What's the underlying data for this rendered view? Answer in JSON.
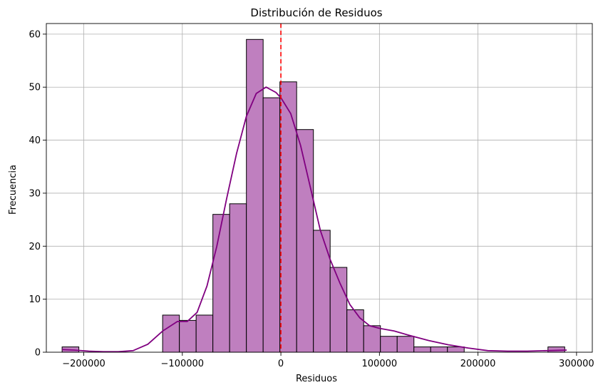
{
  "chart_data": {
    "type": "histogram",
    "title": "Distribución de Residuos",
    "xlabel": "Residuos",
    "ylabel": "Frecuencia",
    "xlim": [
      -238000,
      316000
    ],
    "ylim": [
      0,
      62
    ],
    "xticks": [
      -200000,
      -100000,
      0,
      100000,
      200000,
      300000
    ],
    "xtick_labels": [
      "−200000",
      "−100000",
      "0",
      "100000",
      "200000",
      "300000"
    ],
    "yticks": [
      0,
      10,
      20,
      30,
      40,
      50,
      60
    ],
    "ytick_labels": [
      "0",
      "10",
      "20",
      "30",
      "40",
      "50",
      "60"
    ],
    "grid": true,
    "bin_edges": [
      -222000,
      -205000,
      -188000,
      -171000,
      -154000,
      -137000,
      -120000,
      -103000,
      -86000,
      -69000,
      -52000,
      -35000,
      -18000,
      -1000,
      16000,
      33000,
      50000,
      67000,
      84000,
      101000,
      118000,
      135000,
      152000,
      169000,
      186000,
      203000,
      220000,
      237000,
      254000,
      271000,
      288000
    ],
    "counts": [
      1,
      0,
      0,
      0,
      0,
      0,
      7,
      6,
      7,
      26,
      28,
      59,
      48,
      51,
      42,
      23,
      16,
      8,
      5,
      3,
      3,
      1,
      1,
      1,
      0,
      0,
      0,
      0,
      0,
      1
    ],
    "bar_color": "#bf7fbf",
    "bar_edge_color": "#000000",
    "kde": {
      "color": "#800080",
      "x": [
        -222000,
        -210000,
        -195000,
        -180000,
        -165000,
        -150000,
        -135000,
        -120000,
        -105000,
        -95000,
        -85000,
        -75000,
        -65000,
        -55000,
        -45000,
        -35000,
        -25000,
        -15000,
        -5000,
        0,
        10000,
        20000,
        30000,
        40000,
        50000,
        60000,
        70000,
        80000,
        90000,
        100000,
        115000,
        130000,
        150000,
        170000,
        190000,
        210000,
        230000,
        250000,
        270000,
        290000
      ],
      "y": [
        0.5,
        0.4,
        0.2,
        0.1,
        0.1,
        0.3,
        1.5,
        4.0,
        5.8,
        5.8,
        7.5,
        12.5,
        20.0,
        29.0,
        37.5,
        44.5,
        48.8,
        50.0,
        49.0,
        48.0,
        45.0,
        39.0,
        31.0,
        23.0,
        17.5,
        13.0,
        9.0,
        6.5,
        5.0,
        4.5,
        4.0,
        3.2,
        2.2,
        1.4,
        0.8,
        0.3,
        0.2,
        0.2,
        0.3,
        0.4
      ]
    },
    "vline": {
      "x": 0,
      "color": "#ff0000",
      "style": "dashed"
    }
  }
}
